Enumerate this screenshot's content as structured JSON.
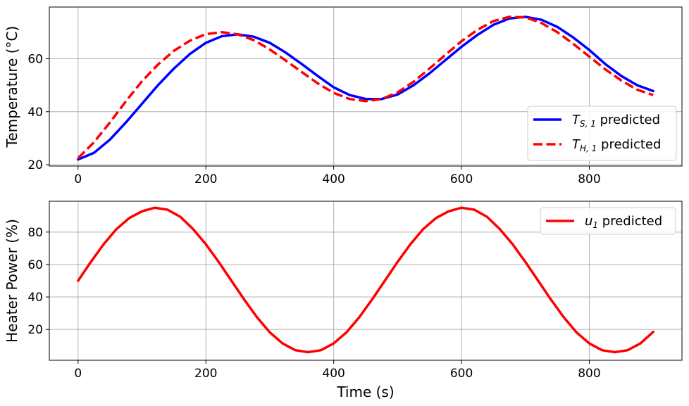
{
  "chart_data": [
    {
      "type": "line",
      "ylabel": "Temperature (°C)",
      "xlabel": "",
      "xlim": [
        -45,
        945
      ],
      "ylim": [
        19.5,
        79.5
      ],
      "xticks": [
        0,
        200,
        400,
        600,
        800
      ],
      "xtick_labels": [
        "0",
        "200",
        "400",
        "600",
        "800"
      ],
      "yticks": [
        20,
        40,
        60
      ],
      "ytick_labels": [
        "20",
        "40",
        "60"
      ],
      "grid": true,
      "legend_position": "lower-right",
      "series": [
        {
          "name": "T_{S,1} predicted",
          "legend_main": "T",
          "legend_sub": "S, 1",
          "legend_suffix": " predicted",
          "color": "#0000ff",
          "style": "solid",
          "x": [
            0,
            25,
            50,
            75,
            100,
            125,
            150,
            175,
            200,
            225,
            250,
            275,
            300,
            325,
            350,
            375,
            400,
            425,
            450,
            475,
            500,
            525,
            550,
            575,
            600,
            625,
            650,
            675,
            700,
            725,
            750,
            775,
            800,
            825,
            850,
            875,
            900
          ],
          "y": [
            22,
            24.5,
            29.5,
            36,
            43,
            50,
            56.3,
            61.8,
            66,
            68.5,
            69.2,
            68.3,
            66,
            62.3,
            58,
            53.5,
            49.2,
            46.3,
            44.8,
            44.8,
            46.5,
            50,
            54.5,
            59.5,
            64.5,
            69,
            72.8,
            75.2,
            75.8,
            74.7,
            72,
            68,
            63.3,
            58,
            53.5,
            50,
            47.8
          ]
        },
        {
          "name": "T_{H,1} predicted",
          "legend_main": "T",
          "legend_sub": "H, 1",
          "legend_suffix": " predicted",
          "color": "#ff0000",
          "style": "dashed",
          "x": [
            0,
            25,
            50,
            75,
            100,
            125,
            150,
            175,
            200,
            225,
            250,
            275,
            300,
            325,
            350,
            375,
            400,
            425,
            450,
            475,
            500,
            525,
            550,
            575,
            600,
            625,
            650,
            675,
            700,
            725,
            750,
            775,
            800,
            825,
            850,
            875,
            900
          ],
          "y": [
            22.5,
            28.5,
            36,
            44,
            51.5,
            57.8,
            63,
            66.8,
            69.3,
            70,
            69.2,
            67,
            63.5,
            59.3,
            55,
            50.7,
            47.1,
            44.8,
            44,
            44.8,
            47.3,
            51.3,
            56.3,
            61.5,
            66.6,
            70.9,
            74.2,
            75.8,
            75.6,
            73.5,
            70,
            65.6,
            60.8,
            56,
            51.8,
            48.3,
            46.3
          ]
        }
      ]
    },
    {
      "type": "line",
      "ylabel": "Heater Power (%)",
      "xlabel": "Time (s)",
      "xlim": [
        -45,
        945
      ],
      "ylim": [
        1,
        99
      ],
      "xticks": [
        0,
        200,
        400,
        600,
        800
      ],
      "xtick_labels": [
        "0",
        "200",
        "400",
        "600",
        "800"
      ],
      "yticks": [
        20,
        40,
        60,
        80
      ],
      "ytick_labels": [
        "20",
        "40",
        "60",
        "80"
      ],
      "grid": true,
      "legend_position": "upper-right",
      "series": [
        {
          "name": "u_1 predicted",
          "legend_main": "u",
          "legend_sub": "1",
          "legend_suffix": " predicted",
          "color": "#ff0000",
          "style": "solid",
          "x": [
            0,
            20,
            40,
            60,
            80,
            100,
            120,
            140,
            160,
            180,
            200,
            220,
            240,
            260,
            280,
            300,
            320,
            340,
            360,
            380,
            400,
            420,
            440,
            460,
            480,
            500,
            520,
            540,
            560,
            580,
            600,
            620,
            640,
            660,
            680,
            700,
            720,
            740,
            760,
            780,
            800,
            820,
            840,
            860,
            880,
            900
          ],
          "y": [
            50,
            61.6,
            72.5,
            81.8,
            88.6,
            92.8,
            95,
            93.8,
            89.4,
            81.8,
            72.5,
            61.6,
            50,
            38.4,
            27.5,
            18.2,
            11.4,
            7.2,
            6,
            7.2,
            11.4,
            18.2,
            27.5,
            38.4,
            50,
            61.6,
            72.5,
            81.8,
            88.6,
            92.8,
            95,
            93.8,
            89.4,
            81.8,
            72.5,
            61.6,
            50,
            38.4,
            27.5,
            18.2,
            11.4,
            7.2,
            6,
            7.2,
            11.4,
            18.5
          ]
        }
      ]
    }
  ]
}
